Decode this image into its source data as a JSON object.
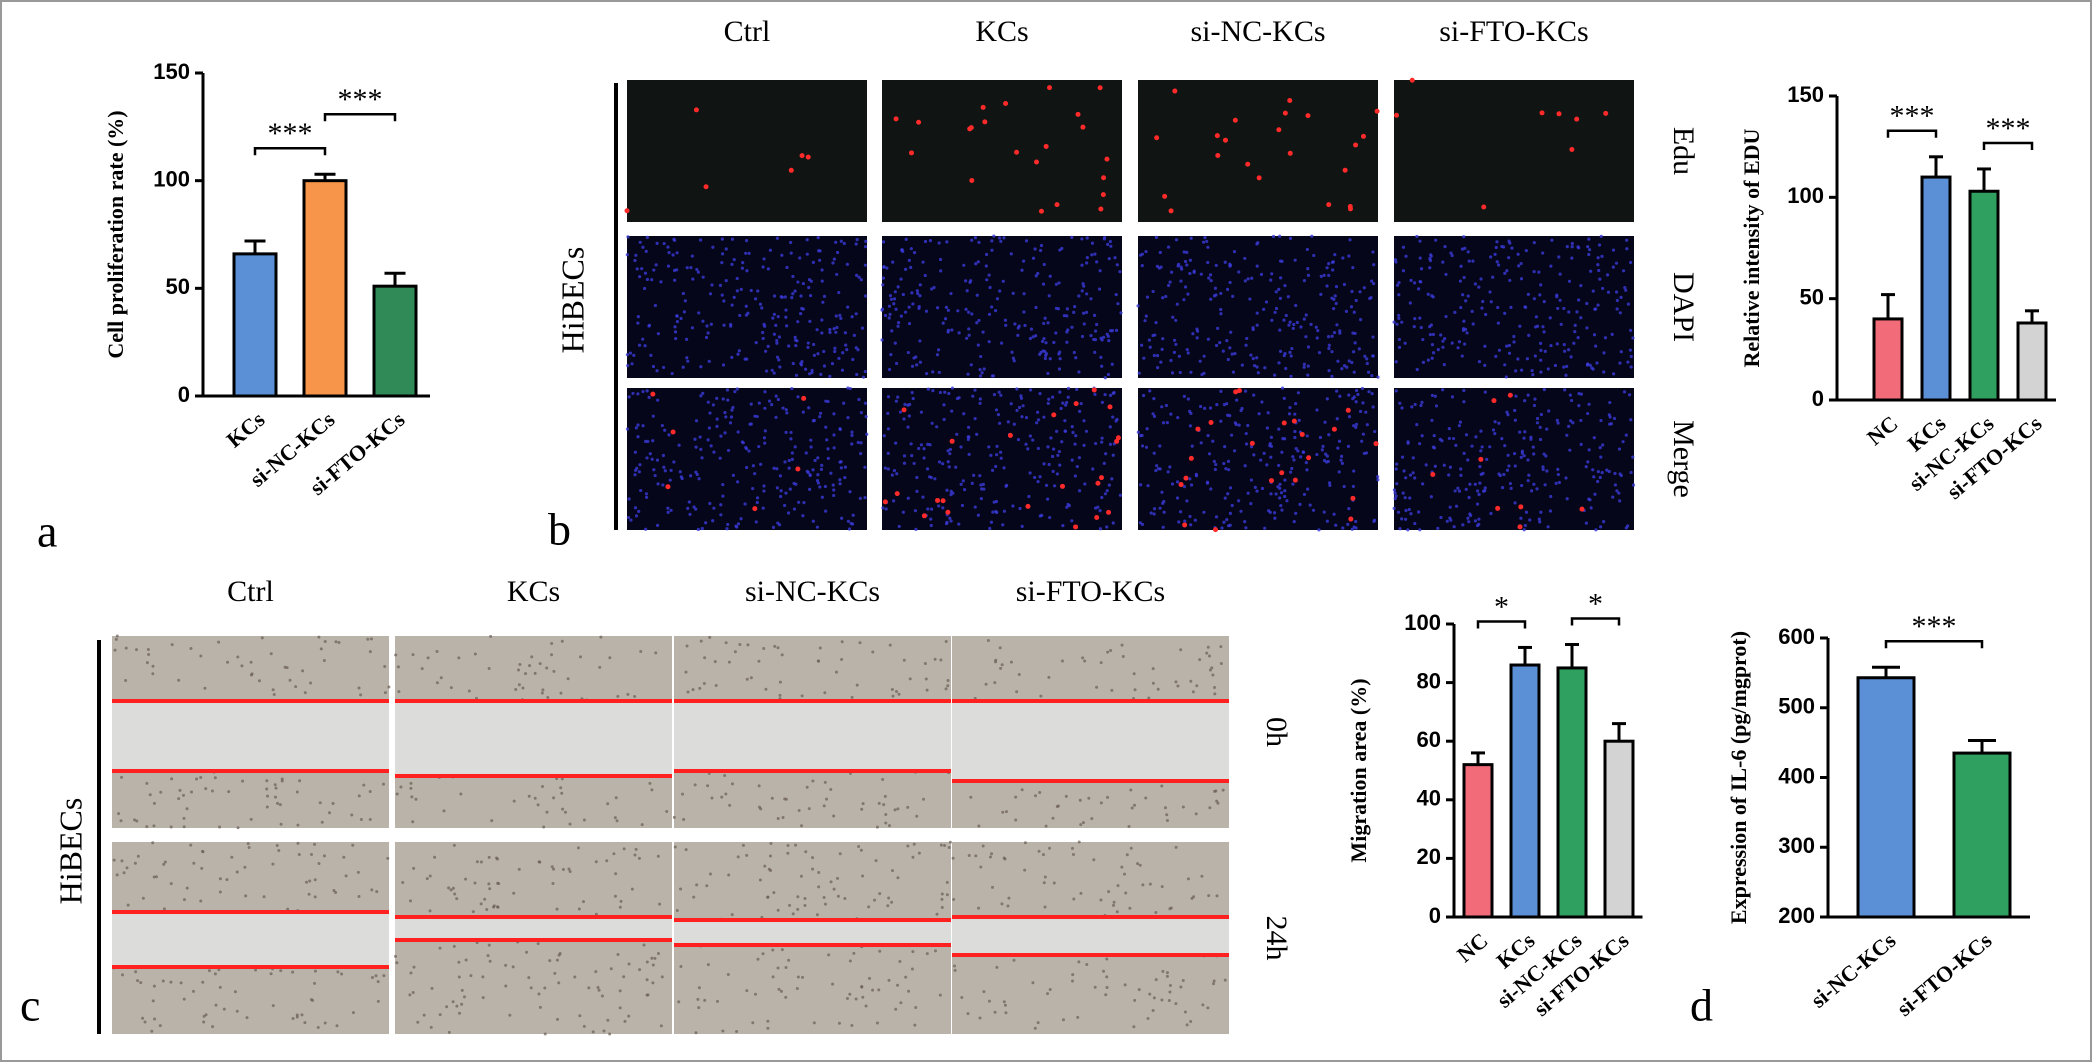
{
  "figure": {
    "panel_labels": [
      "a",
      "b",
      "c",
      "d"
    ],
    "edu_panel": {
      "columns": [
        "Ctrl",
        "KCs",
        "si-NC-KCs",
        "si-FTO-KCs"
      ],
      "rows": [
        "Edu",
        "DAPI",
        "Merge"
      ],
      "side_label": "HiBECs"
    },
    "migration_panel": {
      "columns": [
        "Ctrl",
        "KCs",
        "si-NC-KCs",
        "si-FTO-KCs"
      ],
      "rows": [
        "0h",
        "24h"
      ],
      "side_label": "HiBECs"
    }
  },
  "chart_data": [
    {
      "type": "bar",
      "y_label": "Cell proliferation rate (%)",
      "categories": [
        "KCs",
        "si-NC-KCs",
        "si-FTO-KCs"
      ],
      "values": [
        66,
        100,
        51
      ],
      "errors": [
        6,
        3,
        6
      ],
      "colors": [
        "#5b8fd6",
        "#f7964a",
        "#2f8a58"
      ],
      "ylim": [
        0,
        150
      ],
      "yticks": [
        0,
        50,
        100,
        150
      ],
      "significance": [
        {
          "label": "***",
          "between": [
            "KCs",
            "si-NC-KCs"
          ]
        },
        {
          "label": "***",
          "between": [
            "si-NC-KCs",
            "si-FTO-KCs"
          ]
        }
      ]
    },
    {
      "type": "bar",
      "y_label": "Relative intensity of EDU",
      "categories": [
        "NC",
        "KCs",
        "si-NC-KCs",
        "si-FTO-KCs"
      ],
      "values": [
        40,
        110,
        103,
        38
      ],
      "errors": [
        12,
        10,
        11,
        6
      ],
      "colors": [
        "#f26b78",
        "#5b8fd6",
        "#2fa060",
        "#d3d3d3"
      ],
      "ylim": [
        0,
        150
      ],
      "yticks": [
        0,
        50,
        100,
        150
      ],
      "significance": [
        {
          "label": "***",
          "between": [
            "NC",
            "KCs"
          ]
        },
        {
          "label": "***",
          "between": [
            "si-NC-KCs",
            "si-FTO-KCs"
          ]
        }
      ]
    },
    {
      "type": "bar",
      "y_label": "Migration area (%)",
      "categories": [
        "NC",
        "KCs",
        "si-NC-KCs",
        "si-FTO-KCs"
      ],
      "values": [
        52,
        86,
        85,
        60
      ],
      "errors": [
        4,
        6,
        8,
        6
      ],
      "colors": [
        "#f26b78",
        "#5b8fd6",
        "#2fa060",
        "#d3d3d3"
      ],
      "ylim": [
        0,
        100
      ],
      "yticks": [
        0,
        20,
        40,
        60,
        80,
        100
      ],
      "significance": [
        {
          "label": "*",
          "between": [
            "NC",
            "KCs"
          ]
        },
        {
          "label": "*",
          "between": [
            "si-NC-KCs",
            "si-FTO-KCs"
          ]
        }
      ]
    },
    {
      "type": "bar",
      "y_label": "Expression of IL-6 (pg/mgprot)",
      "categories": [
        "si-NC-KCs",
        "si-FTO-KCs"
      ],
      "values": [
        543,
        435
      ],
      "errors": [
        15,
        18
      ],
      "colors": [
        "#5b8fd6",
        "#2fa060"
      ],
      "ylim": [
        200,
        600
      ],
      "yticks": [
        200,
        300,
        400,
        500,
        600
      ],
      "significance": [
        {
          "label": "***",
          "between": [
            "si-NC-KCs",
            "si-FTO-KCs"
          ]
        }
      ]
    }
  ]
}
